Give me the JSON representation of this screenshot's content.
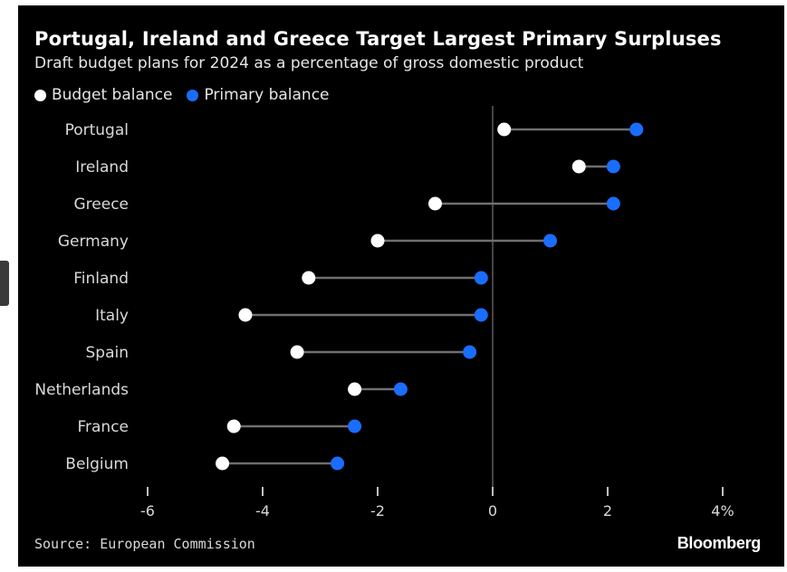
{
  "chart_data": {
    "type": "dumbbell",
    "title": "Portugal, Ireland and Greece Target Largest Primary Surpluses",
    "subtitle": "Draft budget plans for 2024 as a percentage of gross domestic product",
    "legend": [
      {
        "name": "Budget balance",
        "color": "#ffffff"
      },
      {
        "name": "Primary balance",
        "color": "#1a6dff"
      }
    ],
    "categories": [
      "Portugal",
      "Ireland",
      "Greece",
      "Germany",
      "Finland",
      "Italy",
      "Spain",
      "Netherlands",
      "France",
      "Belgium"
    ],
    "series": [
      {
        "name": "Budget balance",
        "values": [
          0.2,
          1.5,
          -1.0,
          -2.0,
          -3.2,
          -4.3,
          -3.4,
          -2.4,
          -4.5,
          -4.7
        ]
      },
      {
        "name": "Primary balance",
        "values": [
          2.5,
          2.1,
          2.1,
          1.0,
          -0.2,
          -0.2,
          -0.4,
          -1.6,
          -2.4,
          -2.7
        ]
      }
    ],
    "xticks": [
      "-6",
      "-4",
      "-2",
      "0",
      "2",
      "4%"
    ],
    "xtick_values": [
      -6,
      -4,
      -2,
      0,
      2,
      4
    ],
    "xlim": [
      -6.2,
      4.2
    ],
    "source": "Source: European Commission",
    "brand": "Bloomberg"
  }
}
